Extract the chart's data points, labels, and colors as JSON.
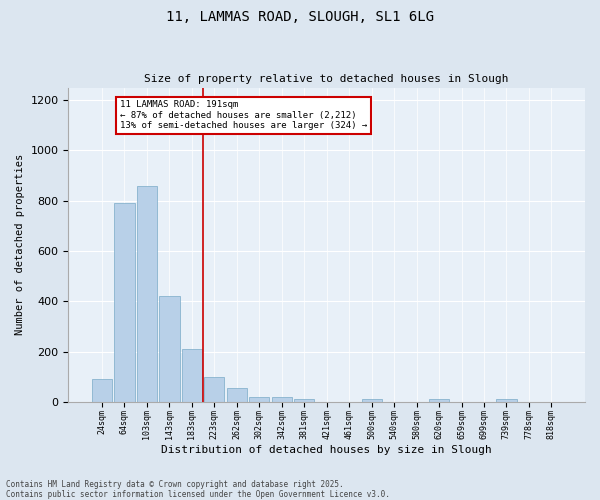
{
  "title1": "11, LAMMAS ROAD, SLOUGH, SL1 6LG",
  "title2": "Size of property relative to detached houses in Slough",
  "xlabel": "Distribution of detached houses by size in Slough",
  "ylabel": "Number of detached properties",
  "categories": [
    "24sqm",
    "64sqm",
    "103sqm",
    "143sqm",
    "183sqm",
    "223sqm",
    "262sqm",
    "302sqm",
    "342sqm",
    "381sqm",
    "421sqm",
    "461sqm",
    "500sqm",
    "540sqm",
    "580sqm",
    "620sqm",
    "659sqm",
    "699sqm",
    "739sqm",
    "778sqm",
    "818sqm"
  ],
  "values": [
    90,
    790,
    860,
    420,
    210,
    100,
    55,
    20,
    20,
    10,
    0,
    0,
    10,
    0,
    0,
    10,
    0,
    0,
    10,
    0,
    0
  ],
  "bar_color": "#b8d0e8",
  "bar_edgecolor": "#7aaac8",
  "vline_x_idx": 4.5,
  "vline_color": "#cc0000",
  "annotation_text": "11 LAMMAS ROAD: 191sqm\n← 87% of detached houses are smaller (2,212)\n13% of semi-detached houses are larger (324) →",
  "annotation_box_color": "#cc0000",
  "ylim": [
    0,
    1250
  ],
  "yticks": [
    0,
    200,
    400,
    600,
    800,
    1000,
    1200
  ],
  "footnote1": "Contains HM Land Registry data © Crown copyright and database right 2025.",
  "footnote2": "Contains public sector information licensed under the Open Government Licence v3.0.",
  "bg_color": "#dce6f0",
  "plot_bg_color": "#e8f0f8"
}
